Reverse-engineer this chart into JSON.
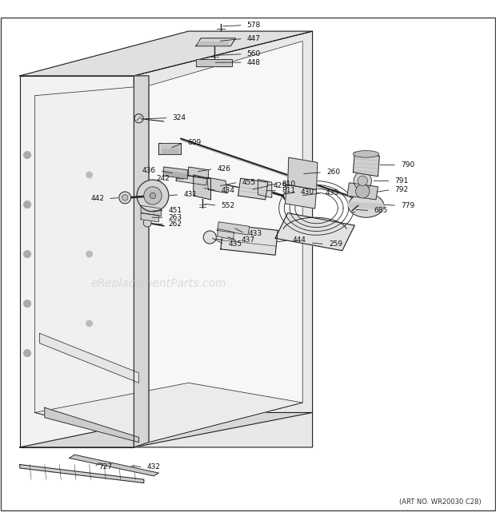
{
  "background_color": "#ffffff",
  "watermark": "eReplacementParts.com",
  "art_no": "(ART NO. WR20030 C28)"
}
